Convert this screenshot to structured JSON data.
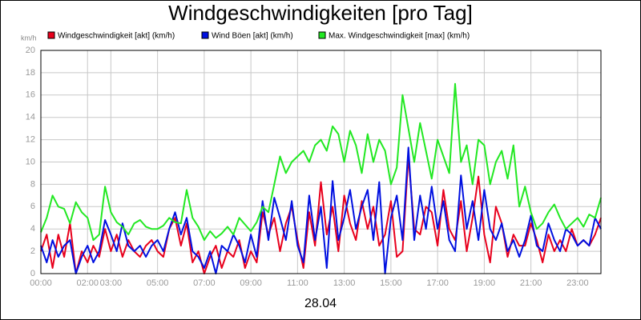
{
  "chart_data": {
    "type": "line",
    "title": "Windgeschwindigkeiten [pro Tag]",
    "y_unit": "km/h",
    "date": "28.04",
    "x": [
      0,
      0.25,
      0.5,
      0.75,
      1,
      1.25,
      1.5,
      1.75,
      2,
      2.25,
      2.5,
      2.75,
      3,
      3.25,
      3.5,
      3.75,
      4,
      4.25,
      4.5,
      4.75,
      5,
      5.25,
      5.5,
      5.75,
      6,
      6.25,
      6.5,
      6.75,
      7,
      7.25,
      7.5,
      7.75,
      8,
      8.25,
      8.5,
      8.75,
      9,
      9.25,
      9.5,
      9.75,
      10,
      10.25,
      10.5,
      10.75,
      11,
      11.25,
      11.5,
      11.75,
      12,
      12.25,
      12.5,
      12.75,
      13,
      13.25,
      13.5,
      13.75,
      14,
      14.25,
      14.5,
      14.75,
      15,
      15.25,
      15.5,
      15.75,
      16,
      16.25,
      16.5,
      16.75,
      17,
      17.25,
      17.5,
      17.75,
      18,
      18.25,
      18.5,
      18.75,
      19,
      19.25,
      19.5,
      19.75,
      20,
      20.25,
      20.5,
      20.75,
      21,
      21.25,
      21.5,
      21.75,
      22,
      22.25,
      22.5,
      22.75,
      23,
      23.25,
      23.5,
      23.75,
      24
    ],
    "series": [
      {
        "name": "Windgeschwindigkeit [akt] (km/h)",
        "color": "#e8001c",
        "values": [
          2.0,
          3.5,
          0.5,
          3.5,
          1.5,
          4.5,
          0.0,
          2.0,
          1.0,
          2.5,
          1.5,
          4.0,
          2.0,
          3.5,
          1.5,
          3.0,
          2.0,
          1.5,
          2.5,
          3.0,
          2.0,
          1.5,
          4.0,
          5.0,
          2.5,
          4.5,
          1.0,
          2.0,
          0.0,
          1.5,
          2.5,
          0.5,
          2.0,
          1.5,
          3.0,
          0.5,
          2.0,
          1.0,
          5.5,
          3.5,
          5.0,
          2.0,
          4.5,
          6.0,
          3.0,
          0.5,
          5.5,
          2.5,
          8.2,
          3.5,
          6.0,
          2.0,
          7.0,
          4.5,
          3.0,
          6.5,
          4.0,
          6.0,
          2.5,
          3.5,
          6.5,
          1.5,
          2.0,
          10.5,
          4.0,
          3.5,
          6.0,
          5.5,
          2.5,
          7.5,
          4.0,
          3.0,
          6.5,
          2.0,
          5.0,
          8.7,
          3.5,
          1.0,
          6.0,
          4.5,
          1.5,
          3.5,
          2.5,
          2.5,
          4.5,
          3.0,
          1.0,
          3.5,
          2.0,
          3.0,
          2.0,
          4.0,
          2.5,
          3.0,
          2.5,
          3.5,
          5.0
        ]
      },
      {
        "name": "Wind Böen [akt] (km/h)",
        "color": "#0010e0",
        "values": [
          2.5,
          1.0,
          3.0,
          1.5,
          2.5,
          3.0,
          0.0,
          1.5,
          2.5,
          1.0,
          2.0,
          4.8,
          3.5,
          2.0,
          4.5,
          2.5,
          2.0,
          2.5,
          1.5,
          2.5,
          3.0,
          2.0,
          4.0,
          5.5,
          3.5,
          5.0,
          2.0,
          1.5,
          0.5,
          2.0,
          0.0,
          2.5,
          2.0,
          3.5,
          2.5,
          1.0,
          3.5,
          1.5,
          6.5,
          3.0,
          6.8,
          5.0,
          3.0,
          6.5,
          2.5,
          1.0,
          7.0,
          3.0,
          6.0,
          0.5,
          8.3,
          3.0,
          5.0,
          7.5,
          4.0,
          6.0,
          7.5,
          3.0,
          8.2,
          0.0,
          5.0,
          7.0,
          3.0,
          11.3,
          3.0,
          7.0,
          4.0,
          7.8,
          4.0,
          6.5,
          3.0,
          2.0,
          8.8,
          4.0,
          6.5,
          3.0,
          7.5,
          4.0,
          3.0,
          4.5,
          2.0,
          3.0,
          1.5,
          3.0,
          5.2,
          2.5,
          2.0,
          4.5,
          3.0,
          2.0,
          4.0,
          3.5,
          2.5,
          3.0,
          2.5,
          5.0,
          4.0
        ]
      },
      {
        "name": "Max. Windgeschwindigkeit [max] (km/h)",
        "color": "#22e822",
        "values": [
          3.7,
          5.0,
          7.0,
          6.0,
          5.8,
          4.5,
          6.4,
          5.5,
          5.0,
          3.0,
          3.5,
          7.8,
          5.5,
          4.6,
          4.2,
          3.5,
          4.5,
          4.8,
          4.2,
          4.0,
          4.0,
          4.3,
          5.0,
          4.6,
          4.5,
          7.5,
          5.0,
          4.2,
          3.0,
          3.8,
          3.2,
          3.6,
          4.2,
          3.5,
          5.0,
          4.4,
          3.8,
          4.6,
          6.0,
          5.5,
          8.0,
          10.5,
          9.0,
          10.0,
          10.5,
          11.0,
          10.0,
          11.5,
          12.0,
          11.0,
          13.2,
          12.5,
          10.0,
          12.8,
          11.5,
          9.0,
          12.5,
          10.0,
          12.0,
          11.0,
          8.0,
          9.5,
          16.0,
          13.0,
          10.0,
          13.5,
          11.0,
          8.5,
          12.0,
          10.5,
          9.0,
          17.0,
          10.0,
          11.5,
          8.0,
          12.0,
          11.5,
          8.0,
          10.0,
          11.0,
          8.5,
          11.5,
          6.0,
          7.8,
          5.5,
          4.0,
          4.5,
          5.5,
          6.2,
          5.0,
          4.0,
          4.5,
          5.0,
          4.2,
          5.3,
          5.0,
          6.8
        ]
      }
    ],
    "xlim": [
      0,
      24
    ],
    "xticks": [
      {
        "value": 0,
        "label": "00:00"
      },
      {
        "value": 2,
        "label": "02:00"
      },
      {
        "value": 3,
        "label": "03:00"
      },
      {
        "value": 5,
        "label": "05:00"
      },
      {
        "value": 7,
        "label": "07:00"
      },
      {
        "value": 9,
        "label": "09:00"
      },
      {
        "value": 11,
        "label": "11:00"
      },
      {
        "value": 13,
        "label": "13:00"
      },
      {
        "value": 15,
        "label": "15:00"
      },
      {
        "value": 17,
        "label": "17:00"
      },
      {
        "value": 19,
        "label": "19:00"
      },
      {
        "value": 21,
        "label": "21:00"
      },
      {
        "value": 23,
        "label": "23:00"
      }
    ],
    "ylim": [
      0,
      20
    ],
    "yticks": [
      0,
      2,
      4,
      6,
      8,
      10,
      12,
      14,
      16,
      18,
      20
    ],
    "grid": true
  }
}
